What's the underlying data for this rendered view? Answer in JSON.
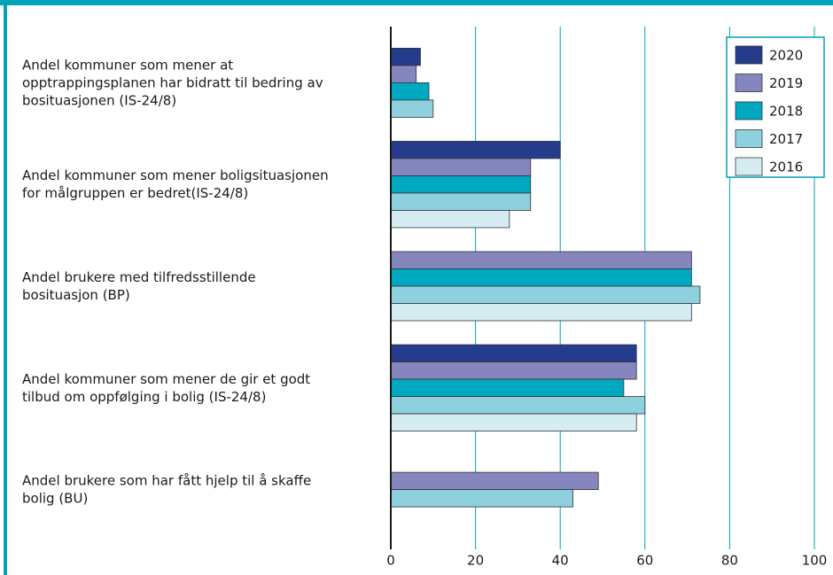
{
  "chart_data": {
    "type": "barh",
    "categories": [
      "Andel kommuner som mener at\nopptrappingsplanen har bidratt til bedring av\nbosituasjonen (IS-24/8)",
      "Andel kommuner som mener boligsituasjonen\nfor målgruppen er bedret(IS-24/8)",
      "Andel brukere med tilfredsstillende\nbosituasjon (BP)",
      "Andel kommuner som mener de gir et godt\ntilbud om oppfølging i bolig (IS-24/8)",
      "Andel brukere som har fått hjelp til å skaffe\nbolig (BU)"
    ],
    "series": [
      {
        "name": "2020",
        "color": "#253c8c",
        "values": [
          7,
          40,
          null,
          58,
          null
        ]
      },
      {
        "name": "2019",
        "color": "#8586be",
        "values": [
          6,
          33,
          71,
          58,
          49
        ]
      },
      {
        "name": "2018",
        "color": "#00a9c0",
        "values": [
          9,
          33,
          71,
          55,
          null
        ]
      },
      {
        "name": "2017",
        "color": "#8ed0de",
        "values": [
          10,
          33,
          73,
          60,
          43
        ]
      },
      {
        "name": "2016",
        "color": "#d4ecf2",
        "values": [
          null,
          28,
          71,
          58,
          null
        ]
      }
    ],
    "xlim": [
      0,
      100
    ],
    "xticks": [
      0,
      20,
      40,
      60,
      80,
      100
    ],
    "grid": true,
    "legend": "upper right"
  }
}
